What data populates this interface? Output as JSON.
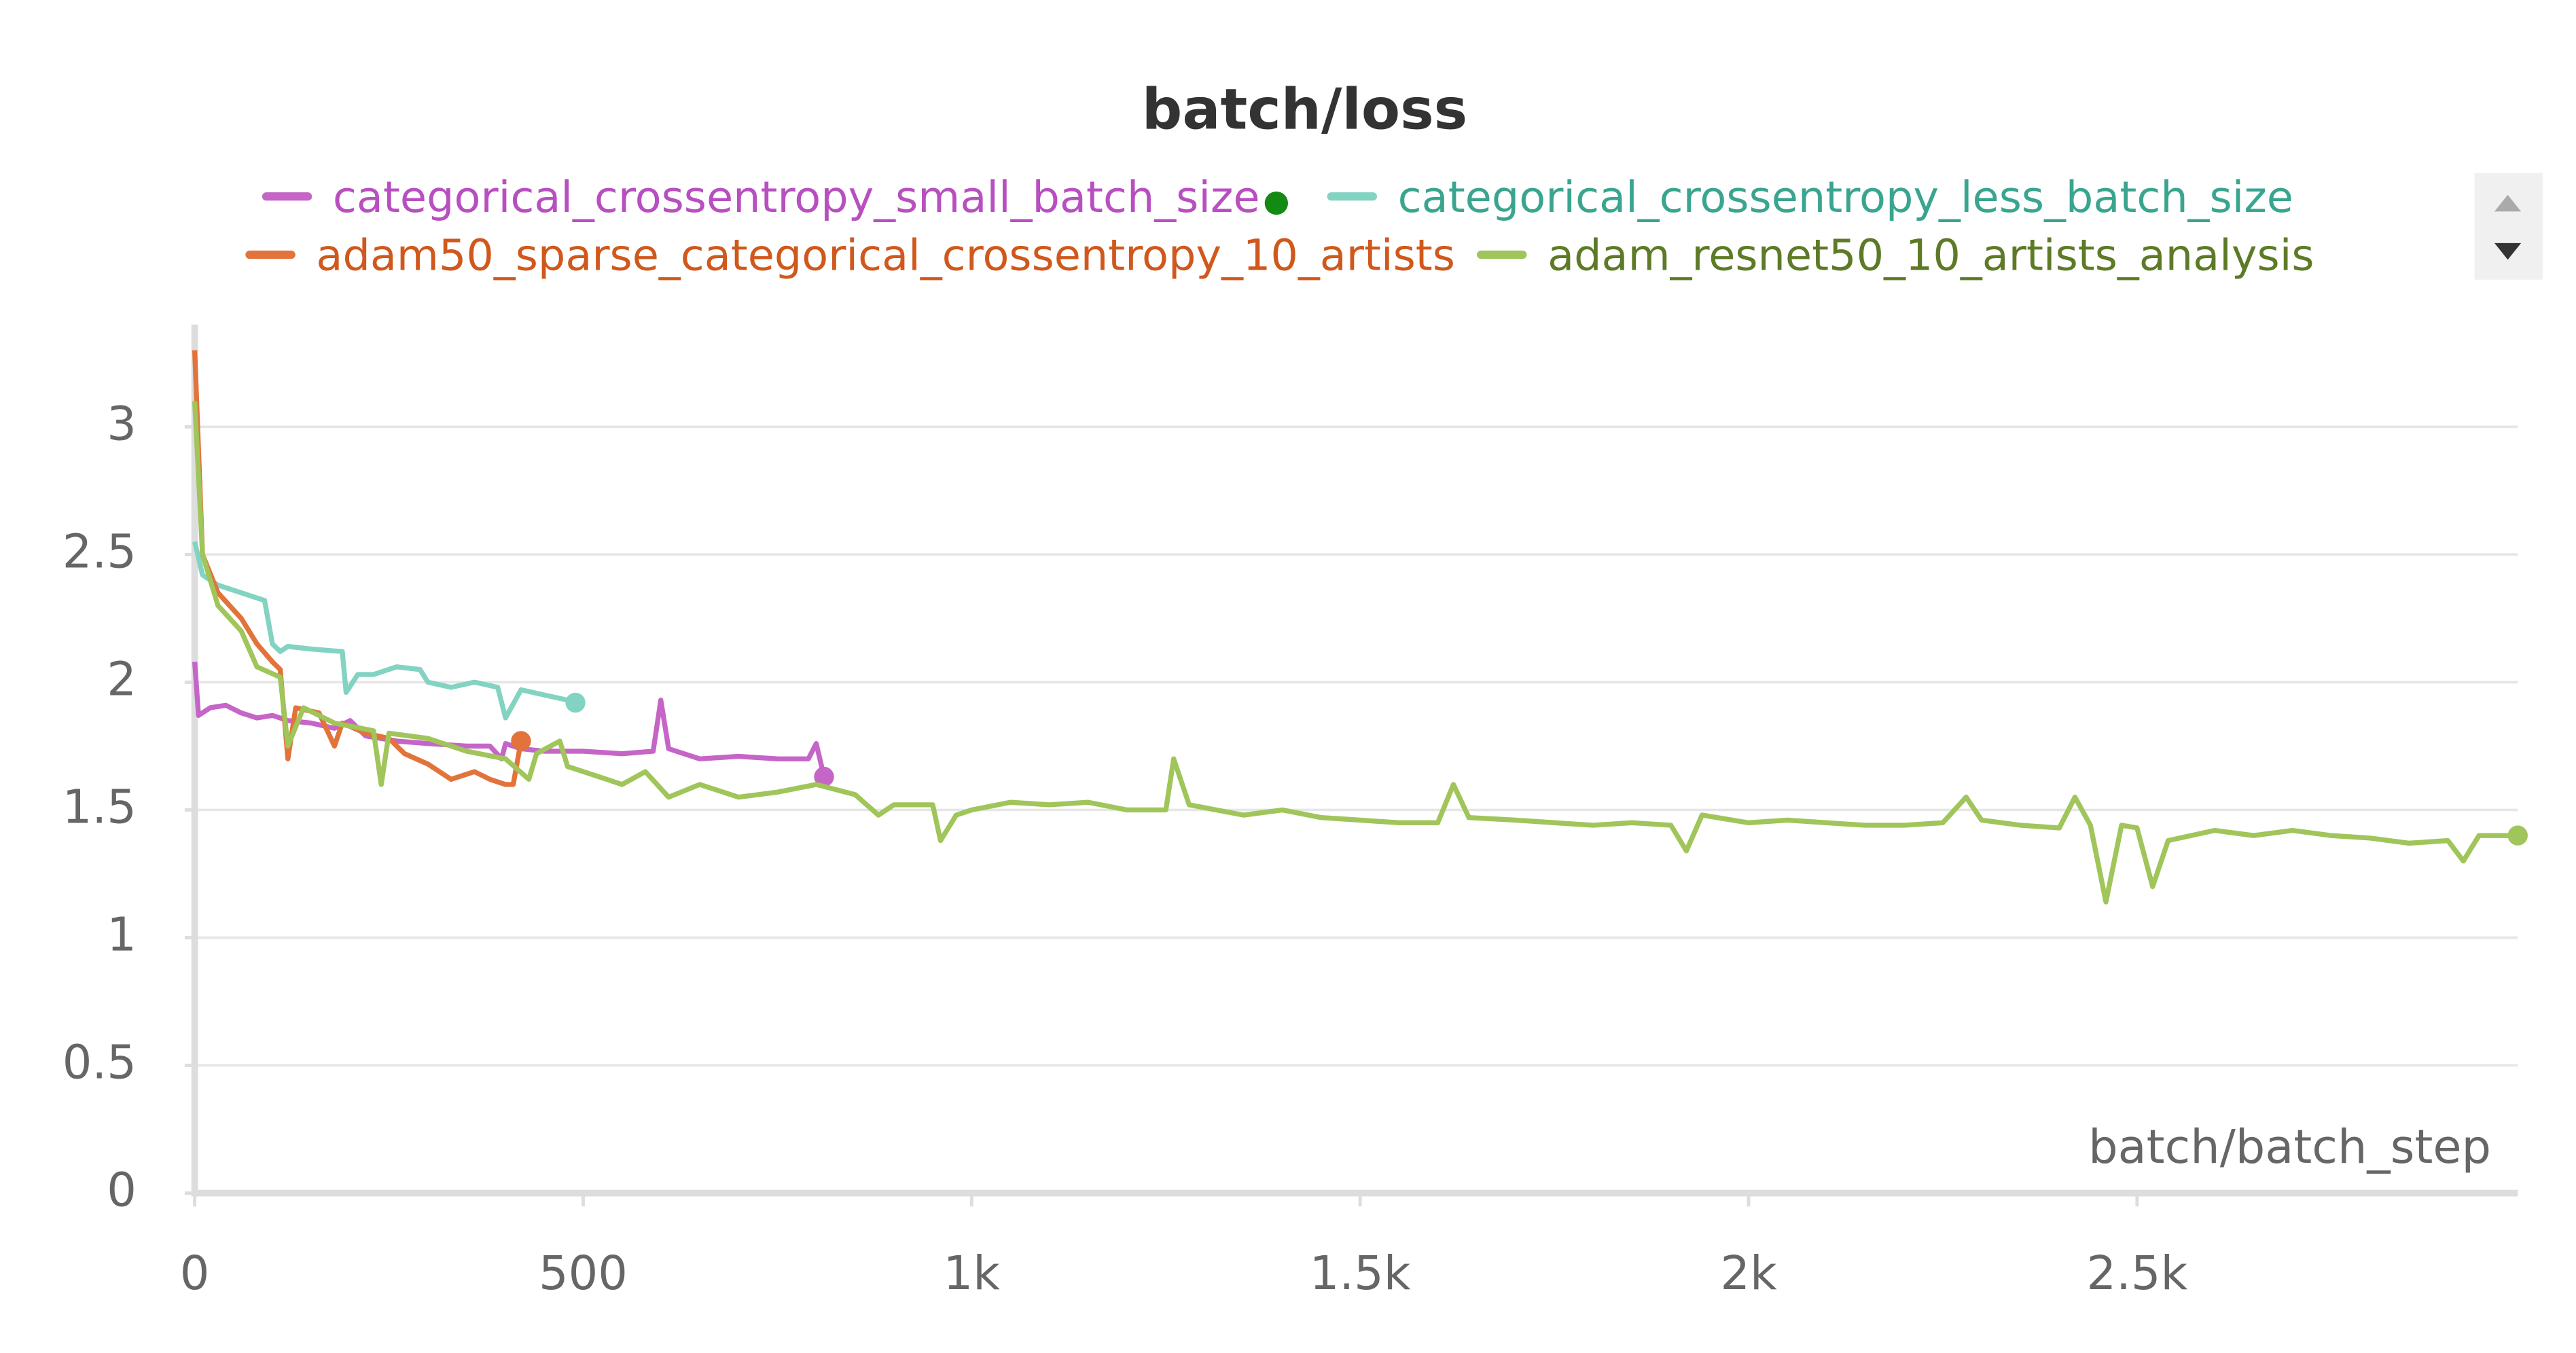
{
  "chart_data": {
    "type": "line",
    "title": "batch/loss",
    "x_label": "batch/batch_step",
    "xlim": [
      0,
      2990
    ],
    "ylim": [
      0,
      3.4
    ],
    "xticks": [
      0,
      500,
      {
        "value": 1000,
        "label": "1k"
      },
      {
        "value": 1500,
        "label": "1.5k"
      },
      {
        "value": 2000,
        "label": "2k"
      },
      {
        "value": 2500,
        "label": "2.5k"
      }
    ],
    "yticks": [
      0,
      0.5,
      1,
      1.5,
      2,
      2.5,
      3
    ],
    "grid": true,
    "series": [
      {
        "name": "categorical_crossentropy_small_batch_size",
        "color": "#c565c7",
        "text_color": "#b84fc0",
        "x": [
          0,
          5,
          20,
          40,
          60,
          80,
          100,
          120,
          150,
          180,
          200,
          220,
          260,
          300,
          350,
          380,
          395,
          400,
          420,
          450,
          500,
          550,
          590,
          600,
          610,
          650,
          700,
          750,
          790,
          800,
          810
        ],
        "values": [
          2.08,
          1.87,
          1.9,
          1.91,
          1.88,
          1.86,
          1.87,
          1.85,
          1.84,
          1.82,
          1.85,
          1.79,
          1.77,
          1.76,
          1.75,
          1.75,
          1.7,
          1.76,
          1.74,
          1.73,
          1.73,
          1.72,
          1.73,
          1.93,
          1.74,
          1.7,
          1.71,
          1.7,
          1.7,
          1.76,
          1.63
        ]
      },
      {
        "name": "categorical_crossentropy_less_batch_size",
        "color": "#83d3c3",
        "text_color": "#3aa58f",
        "x": [
          0,
          10,
          30,
          60,
          90,
          100,
          110,
          120,
          150,
          190,
          195,
          210,
          230,
          260,
          290,
          300,
          330,
          360,
          390,
          400,
          420,
          450,
          480,
          490
        ],
        "values": [
          2.55,
          2.42,
          2.38,
          2.35,
          2.32,
          2.15,
          2.12,
          2.14,
          2.13,
          2.12,
          1.96,
          2.03,
          2.03,
          2.06,
          2.05,
          2.0,
          1.98,
          2.0,
          1.98,
          1.86,
          1.97,
          1.95,
          1.93,
          1.92
        ]
      },
      {
        "name": "adam50_sparse_categorical_crossentropy_10_artists",
        "color": "#e2733a",
        "text_color": "#d0581c",
        "x": [
          0,
          10,
          30,
          60,
          80,
          100,
          110,
          120,
          130,
          160,
          180,
          190,
          220,
          250,
          270,
          300,
          330,
          360,
          380,
          400,
          410,
          420
        ],
        "values": [
          3.3,
          2.5,
          2.35,
          2.25,
          2.15,
          2.08,
          2.05,
          1.7,
          1.9,
          1.88,
          1.75,
          1.84,
          1.8,
          1.78,
          1.72,
          1.68,
          1.62,
          1.65,
          1.62,
          1.6,
          1.6,
          1.77
        ]
      },
      {
        "name": "adam_resnet50_10_artists_analysis",
        "color": "#a0c55a",
        "text_color": "#5d7a26",
        "x": [
          0,
          10,
          30,
          60,
          80,
          110,
          120,
          140,
          180,
          230,
          240,
          250,
          300,
          350,
          400,
          430,
          440,
          470,
          480,
          520,
          550,
          580,
          610,
          650,
          700,
          750,
          800,
          850,
          880,
          900,
          950,
          960,
          980,
          1000,
          1050,
          1100,
          1150,
          1200,
          1250,
          1260,
          1280,
          1350,
          1400,
          1450,
          1500,
          1550,
          1600,
          1620,
          1640,
          1700,
          1750,
          1800,
          1850,
          1900,
          1920,
          1940,
          2000,
          2050,
          2100,
          2150,
          2200,
          2250,
          2280,
          2300,
          2350,
          2400,
          2420,
          2440,
          2460,
          2480,
          2500,
          2520,
          2540,
          2600,
          2650,
          2700,
          2750,
          2800,
          2850,
          2900,
          2920,
          2940,
          2990
        ],
        "values": [
          3.1,
          2.5,
          2.3,
          2.2,
          2.06,
          2.02,
          1.75,
          1.9,
          1.84,
          1.81,
          1.6,
          1.8,
          1.78,
          1.73,
          1.7,
          1.62,
          1.72,
          1.77,
          1.67,
          1.63,
          1.6,
          1.65,
          1.55,
          1.6,
          1.55,
          1.57,
          1.6,
          1.56,
          1.48,
          1.52,
          1.52,
          1.38,
          1.48,
          1.5,
          1.53,
          1.52,
          1.53,
          1.5,
          1.5,
          1.7,
          1.52,
          1.48,
          1.5,
          1.47,
          1.46,
          1.45,
          1.45,
          1.6,
          1.47,
          1.46,
          1.45,
          1.44,
          1.45,
          1.44,
          1.34,
          1.48,
          1.45,
          1.46,
          1.45,
          1.44,
          1.44,
          1.45,
          1.55,
          1.46,
          1.44,
          1.43,
          1.55,
          1.44,
          1.14,
          1.44,
          1.43,
          1.2,
          1.38,
          1.42,
          1.4,
          1.42,
          1.4,
          1.39,
          1.37,
          1.38,
          1.3,
          1.4,
          1.4
        ]
      }
    ]
  }
}
